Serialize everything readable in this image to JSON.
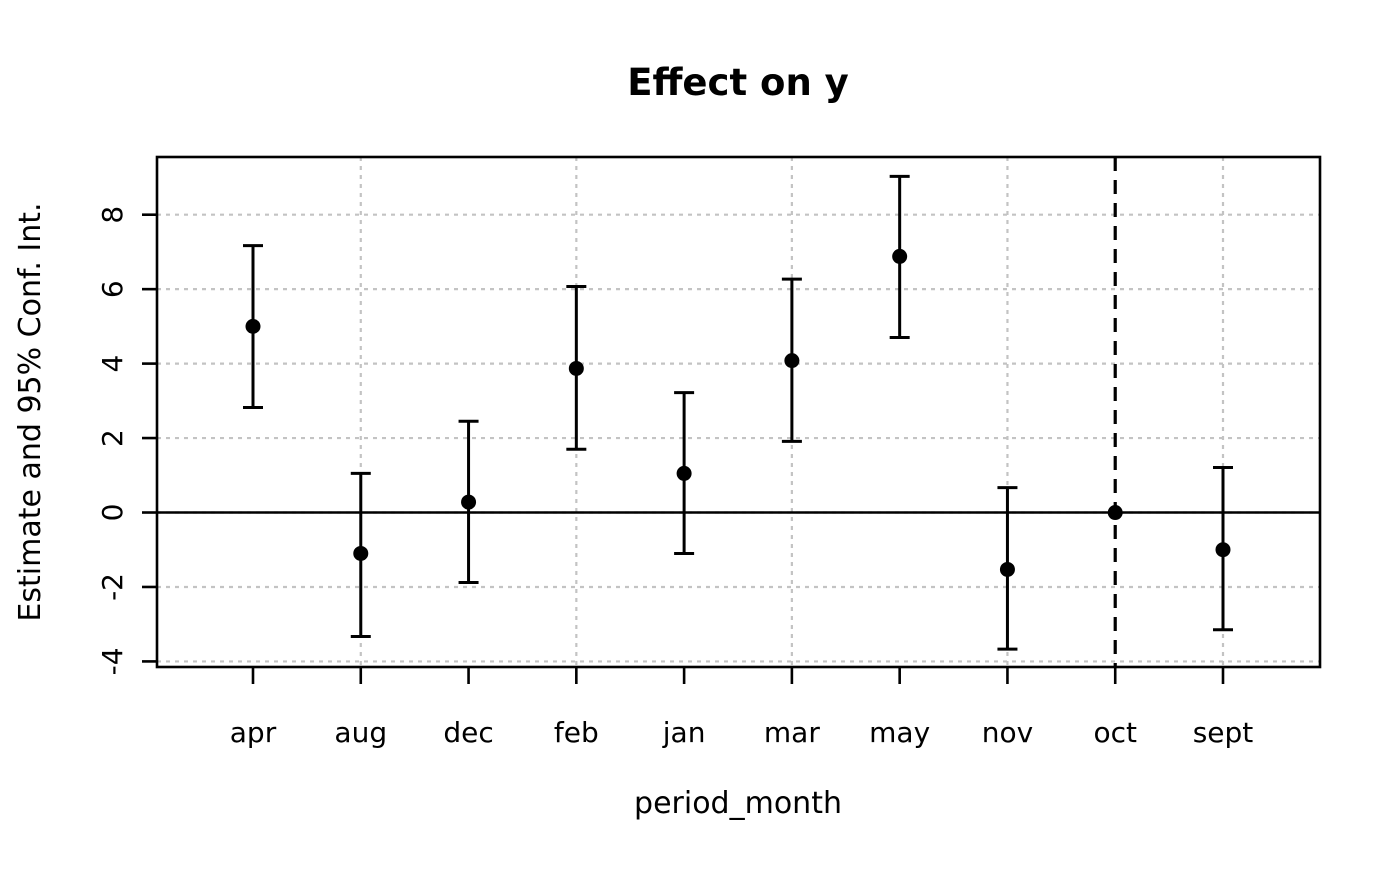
{
  "figure": {
    "title": "Effect on y",
    "xlabel": "period_month",
    "ylabel": "Estimate and 95% Conf. Int."
  },
  "chart_data": {
    "type": "scatter",
    "subtype": "coefficient-plot-with-95ci-error-bars",
    "title": "Effect on y",
    "xlabel": "period_month",
    "ylabel": "Estimate and 95% Conf. Int.",
    "categories": [
      "apr",
      "aug",
      "dec",
      "feb",
      "jan",
      "mar",
      "may",
      "nov",
      "oct",
      "sept"
    ],
    "points": [
      {
        "category": "apr",
        "estimate": 5.0,
        "ci_low": 2.82,
        "ci_high": 7.17,
        "reference": false
      },
      {
        "category": "aug",
        "estimate": -1.1,
        "ci_low": -3.33,
        "ci_high": 1.05,
        "reference": false
      },
      {
        "category": "dec",
        "estimate": 0.28,
        "ci_low": -1.88,
        "ci_high": 2.45,
        "reference": false
      },
      {
        "category": "feb",
        "estimate": 3.87,
        "ci_low": 1.7,
        "ci_high": 6.07,
        "reference": false
      },
      {
        "category": "jan",
        "estimate": 1.05,
        "ci_low": -1.1,
        "ci_high": 3.22,
        "reference": false
      },
      {
        "category": "mar",
        "estimate": 4.08,
        "ci_low": 1.91,
        "ci_high": 6.27,
        "reference": false
      },
      {
        "category": "may",
        "estimate": 6.88,
        "ci_low": 4.7,
        "ci_high": 9.03,
        "reference": false
      },
      {
        "category": "nov",
        "estimate": -1.53,
        "ci_low": -3.67,
        "ci_high": 0.67,
        "reference": false
      },
      {
        "category": "oct",
        "estimate": 0.0,
        "ci_low": null,
        "ci_high": null,
        "reference": true
      },
      {
        "category": "sept",
        "estimate": -1.0,
        "ci_low": -3.15,
        "ci_high": 1.21,
        "reference": false
      }
    ],
    "y_ticks": [
      -4,
      -2,
      0,
      2,
      4,
      6,
      8
    ],
    "ylim": [
      -4.15,
      9.55
    ],
    "zero_line_y": 0,
    "reference_category": "oct",
    "grid": {
      "style": "dotted",
      "horizontal_at_y": [
        -4,
        -2,
        0,
        2,
        4,
        6,
        8
      ],
      "vertical_at_categories": [
        "aug",
        "feb",
        "mar",
        "nov",
        "sept"
      ]
    },
    "legend_position": "none",
    "colors": {
      "point": "#000000",
      "error_bar": "#000000",
      "zero_line": "#000000",
      "reference_line": "#000000",
      "plot_border": "#000000",
      "grid": "#c3c3c3",
      "text": "#000000",
      "background": "#ffffff"
    }
  }
}
